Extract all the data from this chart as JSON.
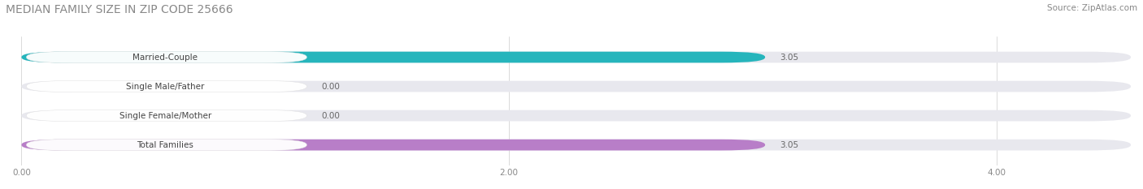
{
  "title": "MEDIAN FAMILY SIZE IN ZIP CODE 25666",
  "source": "Source: ZipAtlas.com",
  "categories": [
    "Married-Couple",
    "Single Male/Father",
    "Single Female/Mother",
    "Total Families"
  ],
  "values": [
    3.05,
    0.0,
    0.0,
    3.05
  ],
  "bar_colors": [
    "#26b5bc",
    "#a8b8e8",
    "#f5a8be",
    "#b87ec8"
  ],
  "xlim": [
    0,
    4.55
  ],
  "xticks": [
    0.0,
    2.0,
    4.0
  ],
  "xtick_labels": [
    "0.00",
    "2.00",
    "4.00"
  ],
  "bar_height": 0.38,
  "figsize": [
    14.06,
    2.33
  ],
  "dpi": 100,
  "background_color": "#ffffff",
  "bar_bg_color": "#e8e8ee",
  "value_label_color": "#666666",
  "title_color": "#888888",
  "source_color": "#888888",
  "label_pill_color": "#ffffff",
  "label_text_color": "#444444"
}
